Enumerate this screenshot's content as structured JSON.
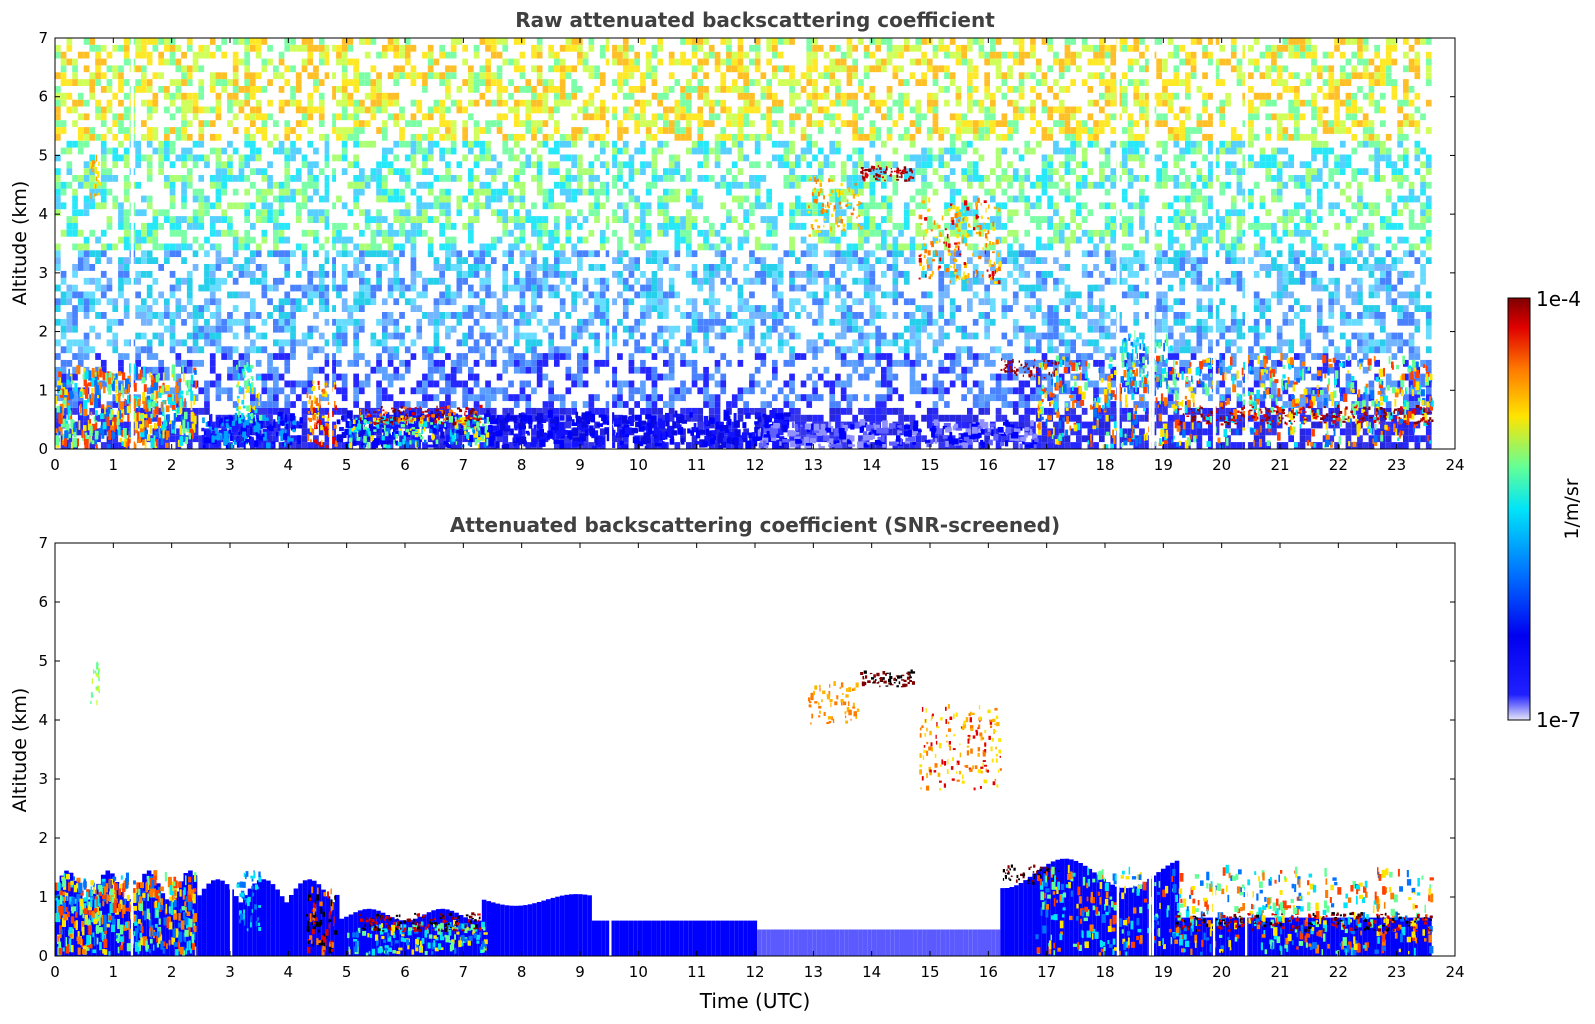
{
  "chart_data": [
    {
      "type": "heatmap",
      "title": "Raw attenuated backscattering coefficient",
      "xlabel": "",
      "ylabel": "Altitude (km)",
      "xlim": [
        0,
        24
      ],
      "ylim": [
        0,
        7
      ],
      "xticks": [
        "0",
        "1",
        "2",
        "3",
        "4",
        "5",
        "6",
        "7",
        "8",
        "9",
        "10",
        "11",
        "12",
        "13",
        "14",
        "15",
        "16",
        "17",
        "18",
        "19",
        "20",
        "21",
        "22",
        "23",
        "24"
      ],
      "yticks": [
        "0",
        "1",
        "2",
        "3",
        "4",
        "5",
        "6",
        "7"
      ],
      "data_end_time": 23.6,
      "features": [
        {
          "name": "boundary layer aerosol (early)",
          "t": [
            0,
            2.4
          ],
          "alt": [
            0,
            1.4
          ],
          "level": "high"
        },
        {
          "name": "aerosol plume",
          "t": [
            4.3,
            4.8
          ],
          "alt": [
            0,
            1.2
          ],
          "level": "very high"
        },
        {
          "name": "low cloud",
          "t": [
            5.2,
            7.3
          ],
          "alt": [
            0.4,
            0.7
          ],
          "level": "very high"
        },
        {
          "name": "cirrus layer",
          "t": [
            13.8,
            14.7
          ],
          "alt": [
            4.5,
            4.8
          ],
          "level": "very high"
        },
        {
          "name": "virga",
          "t": [
            12.9,
            16.2
          ],
          "alt": [
            2.8,
            4.6
          ],
          "level": "high"
        },
        {
          "name": "cloud top layer",
          "t": [
            16.2,
            17.2
          ],
          "alt": [
            1.2,
            1.5
          ],
          "level": "very high"
        },
        {
          "name": "afternoon boundary layer",
          "t": [
            17,
            23.6
          ],
          "alt": [
            0,
            1.9
          ],
          "level": "high"
        },
        {
          "name": "stratocumulus layer",
          "t": [
            19.2,
            23.6
          ],
          "alt": [
            0.4,
            0.7
          ],
          "level": "very high"
        }
      ]
    },
    {
      "type": "heatmap",
      "title": "Attenuated backscattering coefficient (SNR-screened)",
      "xlabel": "Time (UTC)",
      "ylabel": "Altitude (km)",
      "xlim": [
        0,
        24
      ],
      "ylim": [
        0,
        7
      ],
      "xticks": [
        "0",
        "1",
        "2",
        "3",
        "4",
        "5",
        "6",
        "7",
        "8",
        "9",
        "10",
        "11",
        "12",
        "13",
        "14",
        "15",
        "16",
        "17",
        "18",
        "19",
        "20",
        "21",
        "22",
        "23",
        "24"
      ],
      "yticks": [
        "0",
        "1",
        "2",
        "3",
        "4",
        "5",
        "6",
        "7"
      ],
      "data_end_time": 23.6
    }
  ],
  "colorbar": {
    "label": "1/m/sr",
    "max_label": "1e-4",
    "min_label": "1e-7",
    "colors": [
      "#e6e6f8",
      "#0000ff",
      "#0074ff",
      "#00e4f8",
      "#64ff96",
      "#ffe400",
      "#ff7b00",
      "#e00000",
      "#7f0000"
    ]
  }
}
